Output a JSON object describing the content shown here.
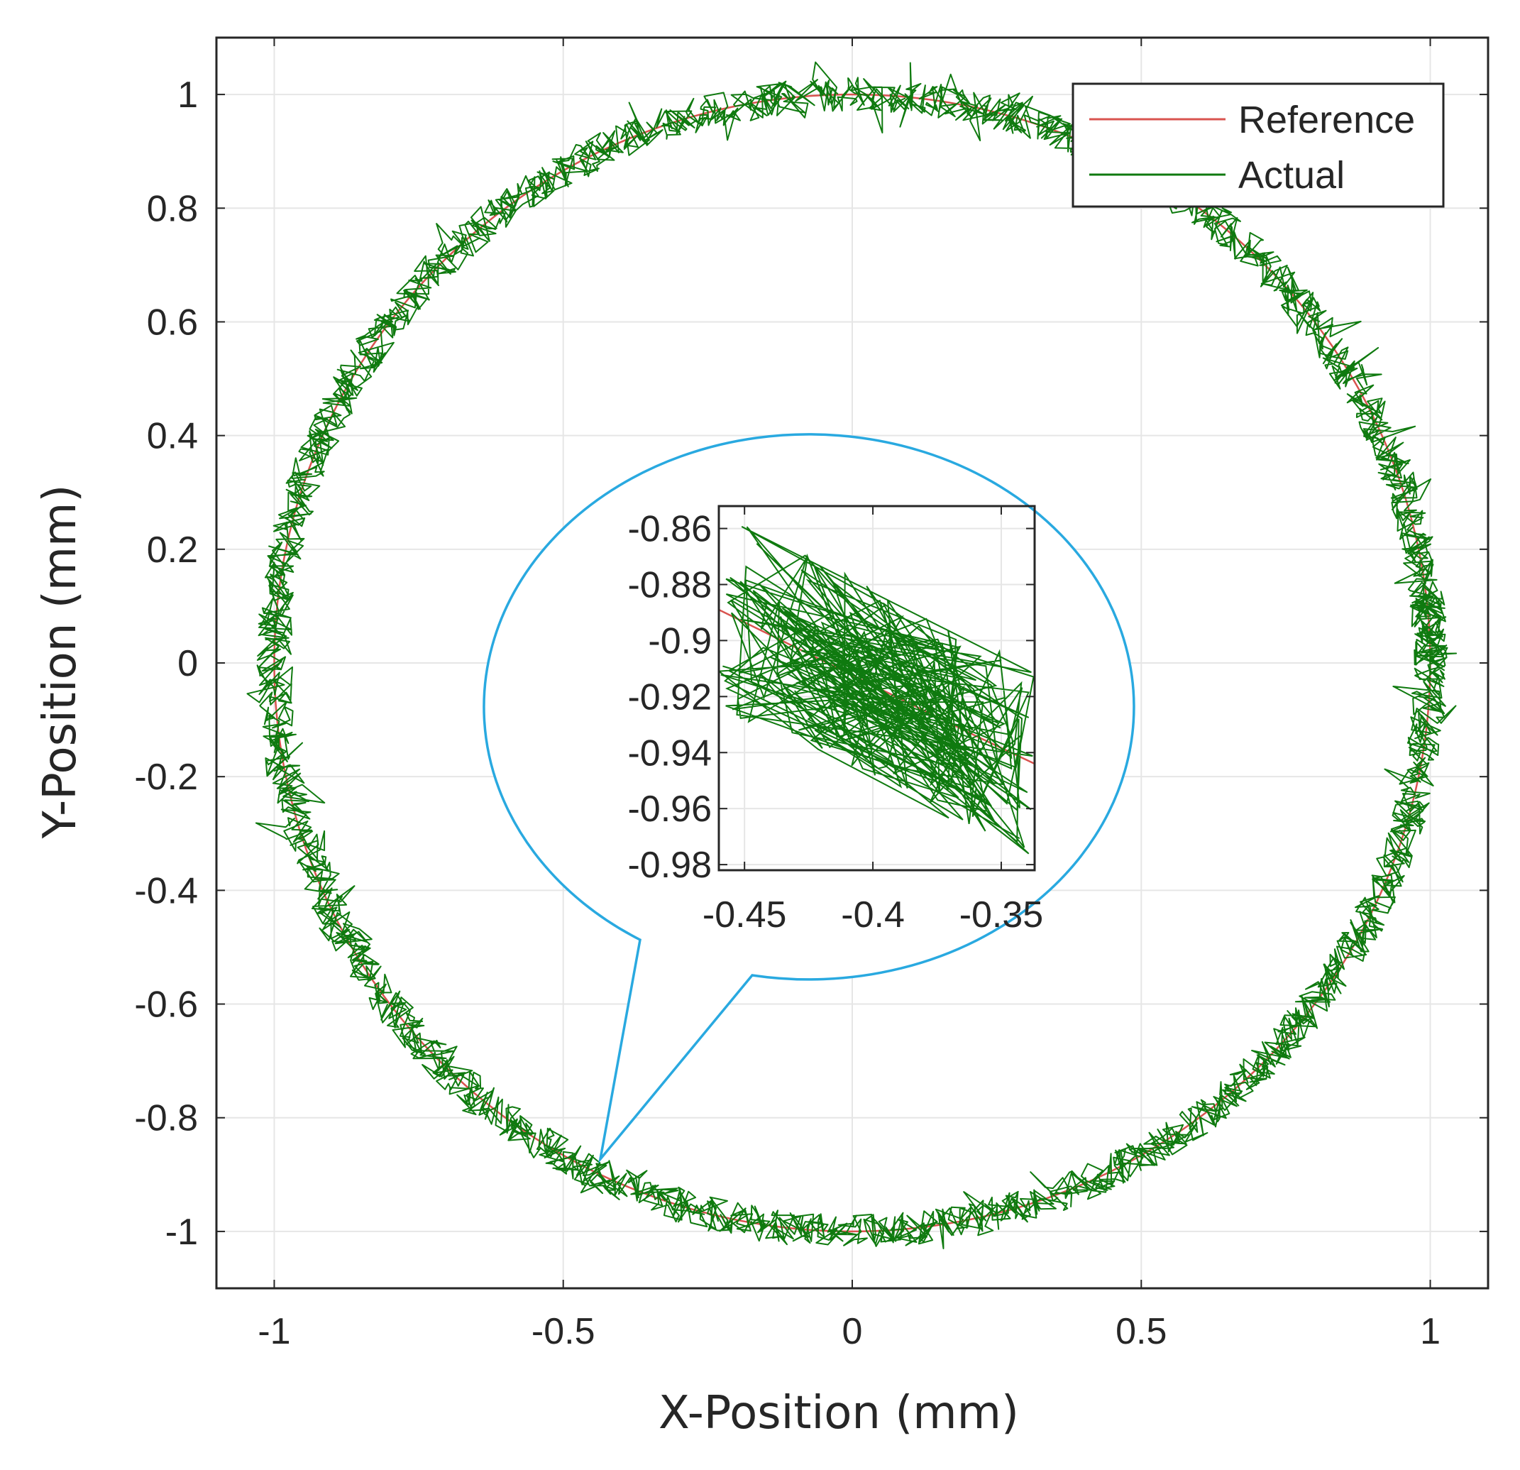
{
  "chart_data": [
    {
      "id": "main",
      "type": "line",
      "title": "",
      "xlabel": "X-Position (mm)",
      "ylabel": "Y-Position (mm)",
      "xlim": [
        -1.1,
        1.1
      ],
      "ylim": [
        -1.1,
        1.1
      ],
      "xticks": [
        -1,
        -0.5,
        0,
        0.5,
        1
      ],
      "xtick_labels": [
        "-1",
        "-0.5",
        "0",
        "0.5",
        "1"
      ],
      "yticks": [
        1,
        0.8,
        0.6,
        0.4,
        0.2,
        0,
        -0.2,
        -0.4,
        -0.6,
        -0.8,
        -1
      ],
      "ytick_labels": [
        "1",
        "0.8",
        "0.6",
        "0.4",
        "0.2",
        "0",
        "-0.2",
        "-0.4",
        "-0.6",
        "-0.8",
        "-1"
      ],
      "grid": true,
      "legend_position": "top-right",
      "series": [
        {
          "name": "Reference",
          "color": "#d9534f",
          "shape": "circle",
          "center": [
            0,
            0
          ],
          "radius": 1.0
        },
        {
          "name": "Actual",
          "color": "#0f7a0f",
          "shape": "noisy-circle",
          "center": [
            0,
            0
          ],
          "radius": 1.0,
          "noise_amplitude": 0.03,
          "points": 3200,
          "seed": 7
        }
      ]
    },
    {
      "id": "inset",
      "type": "line",
      "title": "",
      "xlabel": "",
      "ylabel": "",
      "xlim": [
        -0.46,
        -0.337
      ],
      "ylim": [
        -0.982,
        -0.852
      ],
      "xticks": [
        -0.45,
        -0.4,
        -0.35
      ],
      "xtick_labels": [
        "-0.45",
        "-0.4",
        "-0.35"
      ],
      "yticks": [
        -0.86,
        -0.88,
        -0.9,
        -0.92,
        -0.94,
        -0.96,
        -0.98
      ],
      "ytick_labels": [
        "-0.86",
        "-0.88",
        "-0.9",
        "-0.92",
        "-0.94",
        "-0.96",
        "-0.98"
      ],
      "grid": true,
      "series": [
        {
          "name": "Reference",
          "color": "#d9534f",
          "x": [
            -0.46,
            -0.44,
            -0.42,
            -0.4,
            -0.38,
            -0.36,
            -0.337
          ],
          "y": [
            -0.889,
            -0.898,
            -0.907,
            -0.916,
            -0.925,
            -0.934,
            -0.944
          ]
        },
        {
          "name": "Actual",
          "color": "#0f7a0f",
          "points": 260,
          "noise_amplitude": 0.035,
          "seed": 11
        }
      ],
      "zoom_target": [
        -0.43,
        -0.9
      ]
    }
  ]
}
